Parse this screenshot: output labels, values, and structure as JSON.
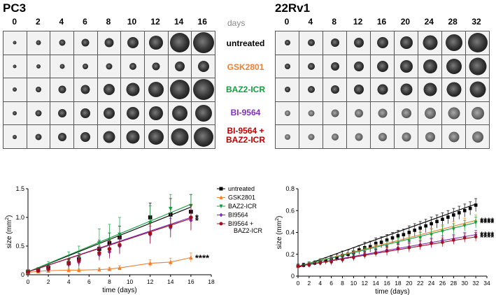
{
  "panel_pc3": {
    "title": "PC3",
    "days": [
      "0",
      "2",
      "4",
      "6",
      "8",
      "10",
      "12",
      "14",
      "16"
    ]
  },
  "panel_22rv1": {
    "title": "22Rv1",
    "days": [
      "0",
      "4",
      "8",
      "12",
      "16",
      "20",
      "24",
      "28",
      "32"
    ]
  },
  "days_label": "days",
  "treatments": [
    {
      "label": "untreated",
      "color": "#000000"
    },
    {
      "label": "GSK2801",
      "color": "#f08030"
    },
    {
      "label": "BAZ2-ICR",
      "color": "#10a040"
    },
    {
      "label": "BI-9564",
      "color": "#8030c0"
    },
    {
      "label": "BI-9564 +",
      "label2": "BAZ2-ICR",
      "color": "#c00000"
    }
  ],
  "chart_data": [
    {
      "type": "line",
      "title": "PC3",
      "xlabel": "time (days)",
      "ylabel": "size (mm",
      "ylabel_sup": "2",
      "ylabel_end": ")",
      "xlim": [
        0,
        18
      ],
      "ylim": [
        0,
        1.5
      ],
      "xticks": [
        "0",
        "2",
        "4",
        "6",
        "8",
        "10",
        "12",
        "14",
        "16",
        "18"
      ],
      "yticks": [
        "0",
        "0.5",
        "1.0",
        "1.5"
      ],
      "series": [
        {
          "name": "untreated",
          "color": "#000000",
          "marker": "square",
          "x": [
            0,
            1,
            2,
            4,
            5,
            7,
            8,
            9,
            12,
            14,
            16
          ],
          "y": [
            0.05,
            0.08,
            0.12,
            0.2,
            0.27,
            0.45,
            0.55,
            0.65,
            1.0,
            1.05,
            1.1
          ],
          "err": [
            0.02,
            0.03,
            0.05,
            0.08,
            0.1,
            0.15,
            0.18,
            0.2,
            0.25,
            0.28,
            0.3
          ],
          "fit": [
            0.05,
            1.18
          ],
          "sig": ""
        },
        {
          "name": "GSK2801",
          "color": "#f08030",
          "marker": "triangle-up",
          "x": [
            0,
            1,
            2,
            4,
            5,
            7,
            8,
            9,
            12,
            14,
            16
          ],
          "y": [
            0.04,
            0.06,
            0.07,
            0.08,
            0.08,
            0.09,
            0.1,
            0.12,
            0.2,
            0.22,
            0.3
          ],
          "err": [
            0.01,
            0.02,
            0.02,
            0.02,
            0.02,
            0.03,
            0.03,
            0.04,
            0.06,
            0.07,
            0.08
          ],
          "fit": null,
          "sig": "****"
        },
        {
          "name": "BAZ2-ICR",
          "color": "#10a040",
          "marker": "triangle-down",
          "x": [
            0,
            1,
            2,
            4,
            5,
            7,
            8,
            9,
            12,
            14,
            16
          ],
          "y": [
            0.06,
            0.09,
            0.15,
            0.25,
            0.3,
            0.55,
            0.6,
            0.7,
            0.9,
            1.15,
            1.2
          ],
          "err": [
            0.02,
            0.04,
            0.08,
            0.15,
            0.2,
            0.25,
            0.28,
            0.3,
            0.3,
            0.25,
            0.2
          ],
          "fit": [
            0.05,
            1.23
          ],
          "sig": ""
        },
        {
          "name": "BI9564",
          "color": "#8030c0",
          "marker": "diamond",
          "x": [
            0,
            1,
            2,
            4,
            5,
            7,
            8,
            9,
            12,
            14,
            16
          ],
          "y": [
            0.05,
            0.08,
            0.1,
            0.18,
            0.22,
            0.35,
            0.4,
            0.5,
            0.7,
            0.82,
            0.95
          ],
          "err": [
            0.02,
            0.03,
            0.04,
            0.06,
            0.08,
            0.1,
            0.12,
            0.14,
            0.15,
            0.16,
            0.18
          ],
          "fit": [
            0.05,
            1.0
          ],
          "sig": "*"
        },
        {
          "name": "BI9564 +",
          "name2": "BAZ2-ICR",
          "color": "#a01020",
          "marker": "circle",
          "x": [
            0,
            1,
            2,
            4,
            5,
            7,
            8,
            9,
            12,
            14,
            16
          ],
          "y": [
            0.05,
            0.07,
            0.1,
            0.2,
            0.25,
            0.38,
            0.45,
            0.52,
            0.72,
            0.85,
            1.0
          ],
          "err": [
            0.02,
            0.03,
            0.05,
            0.07,
            0.09,
            0.12,
            0.14,
            0.15,
            0.18,
            0.2,
            0.22
          ],
          "fit": [
            0.05,
            0.98
          ],
          "sig": "*"
        }
      ]
    },
    {
      "type": "line",
      "title": "22Rv1",
      "xlabel": "time (days)",
      "ylabel": "size (mm",
      "ylabel_sup": "2",
      "ylabel_end": ")",
      "xlim": [
        0,
        34
      ],
      "ylim": [
        0,
        0.8
      ],
      "xticks": [
        "0",
        "2",
        "4",
        "6",
        "8",
        "10",
        "12",
        "14",
        "16",
        "18",
        "20",
        "22",
        "24",
        "26",
        "28",
        "30",
        "32",
        "34"
      ],
      "yticks": [
        "0",
        "0.2",
        "0.4",
        "0.6",
        "0.8"
      ],
      "series": [
        {
          "name": "untreated",
          "color": "#000000",
          "marker": "square",
          "x": [
            0,
            1,
            2,
            3,
            4,
            5,
            6,
            7,
            8,
            9,
            10,
            11,
            12,
            13,
            14,
            15,
            16,
            17,
            18,
            19,
            20,
            21,
            22,
            23,
            24,
            25,
            26,
            27,
            28,
            29,
            30,
            31,
            32
          ],
          "y": [
            0.09,
            0.1,
            0.11,
            0.12,
            0.13,
            0.14,
            0.16,
            0.17,
            0.19,
            0.2,
            0.22,
            0.24,
            0.26,
            0.27,
            0.3,
            0.31,
            0.33,
            0.35,
            0.37,
            0.38,
            0.4,
            0.42,
            0.44,
            0.46,
            0.48,
            0.5,
            0.52,
            0.54,
            0.56,
            0.58,
            0.6,
            0.62,
            0.65
          ],
          "err": [
            0.02,
            0.02,
            0.02,
            0.02,
            0.03,
            0.03,
            0.03,
            0.03,
            0.04,
            0.04,
            0.04,
            0.04,
            0.05,
            0.05,
            0.05,
            0.05,
            0.05,
            0.05,
            0.05,
            0.05,
            0.06,
            0.06,
            0.06,
            0.06,
            0.06,
            0.06,
            0.06,
            0.06,
            0.06,
            0.06,
            0.06,
            0.06,
            0.06
          ],
          "fit": [
            0.08,
            0.66
          ],
          "sig": ""
        },
        {
          "name": "GSK2801",
          "color": "#f08030",
          "marker": "triangle-up",
          "x": [
            0,
            2,
            4,
            6,
            8,
            10,
            12,
            14,
            16,
            18,
            20,
            22,
            24,
            26,
            28,
            30,
            32
          ],
          "y": [
            0.09,
            0.11,
            0.13,
            0.15,
            0.17,
            0.19,
            0.22,
            0.25,
            0.27,
            0.3,
            0.33,
            0.36,
            0.39,
            0.42,
            0.45,
            0.48,
            0.51
          ],
          "err": [
            0.02,
            0.02,
            0.03,
            0.03,
            0.03,
            0.04,
            0.04,
            0.04,
            0.05,
            0.05,
            0.05,
            0.05,
            0.05,
            0.05,
            0.05,
            0.05,
            0.05
          ],
          "fit": [
            0.09,
            0.51
          ],
          "sig": "****"
        },
        {
          "name": "BAZ2-ICR",
          "color": "#10a040",
          "marker": "triangle-down",
          "x": [
            0,
            2,
            4,
            6,
            8,
            10,
            12,
            14,
            16,
            18,
            20,
            22,
            24,
            26,
            28,
            30,
            32
          ],
          "y": [
            0.09,
            0.11,
            0.13,
            0.15,
            0.17,
            0.19,
            0.22,
            0.24,
            0.27,
            0.3,
            0.32,
            0.35,
            0.38,
            0.41,
            0.43,
            0.46,
            0.49
          ],
          "err": [
            0.02,
            0.02,
            0.03,
            0.03,
            0.03,
            0.04,
            0.04,
            0.04,
            0.05,
            0.05,
            0.05,
            0.05,
            0.05,
            0.05,
            0.05,
            0.05,
            0.05
          ],
          "fit": [
            0.09,
            0.49
          ],
          "sig": "****"
        },
        {
          "name": "BI9564",
          "color": "#8030c0",
          "marker": "diamond",
          "x": [
            0,
            2,
            4,
            6,
            8,
            10,
            12,
            14,
            16,
            18,
            20,
            22,
            24,
            26,
            28,
            30,
            32
          ],
          "y": [
            0.09,
            0.1,
            0.12,
            0.14,
            0.16,
            0.18,
            0.2,
            0.22,
            0.24,
            0.26,
            0.27,
            0.29,
            0.31,
            0.33,
            0.34,
            0.36,
            0.38
          ],
          "err": [
            0.02,
            0.02,
            0.02,
            0.03,
            0.03,
            0.03,
            0.03,
            0.03,
            0.04,
            0.04,
            0.04,
            0.04,
            0.04,
            0.04,
            0.04,
            0.04,
            0.04
          ],
          "fit": [
            0.09,
            0.38
          ],
          "sig": "****"
        },
        {
          "name": "BI9564 +",
          "name2": "BAZ2-ICR",
          "color": "#a01020",
          "marker": "circle",
          "x": [
            0,
            2,
            4,
            6,
            8,
            10,
            12,
            14,
            16,
            18,
            20,
            22,
            24,
            26,
            28,
            30,
            32
          ],
          "y": [
            0.09,
            0.1,
            0.12,
            0.13,
            0.15,
            0.17,
            0.19,
            0.21,
            0.23,
            0.25,
            0.26,
            0.28,
            0.3,
            0.31,
            0.33,
            0.35,
            0.36
          ],
          "err": [
            0.02,
            0.02,
            0.02,
            0.03,
            0.03,
            0.03,
            0.03,
            0.03,
            0.04,
            0.04,
            0.04,
            0.04,
            0.04,
            0.04,
            0.04,
            0.04,
            0.04
          ],
          "fit": [
            0.09,
            0.36
          ],
          "sig": "****"
        }
      ]
    }
  ],
  "legend": [
    {
      "label": "untreated",
      "color": "#000000",
      "marker": "square"
    },
    {
      "label": "GSK2801",
      "color": "#f08030",
      "marker": "triangle-up"
    },
    {
      "label": "BAZ2-ICR",
      "color": "#10a040",
      "marker": "triangle-down"
    },
    {
      "label": "BI9564",
      "color": "#8030c0",
      "marker": "diamond"
    },
    {
      "label": "BI9564 +",
      "label2": "BAZ2-ICR",
      "color": "#a01020",
      "marker": "circle"
    }
  ]
}
